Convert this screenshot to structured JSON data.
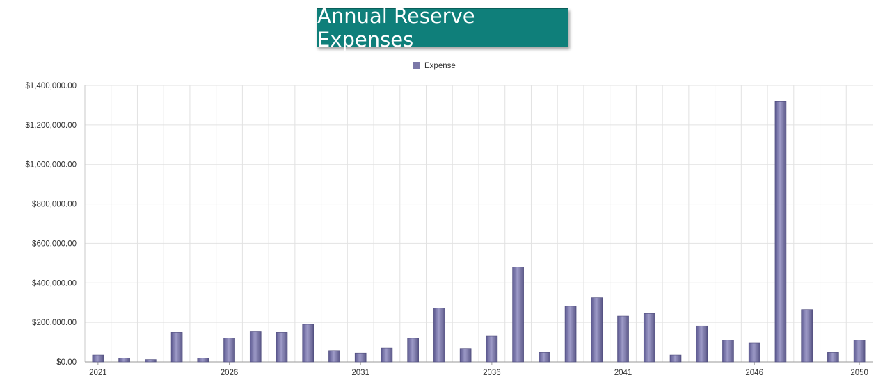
{
  "chart_data": {
    "type": "bar",
    "title": "Annual Reserve Expenses",
    "legend": {
      "entries": [
        "Expense"
      ],
      "placement": "top-center"
    },
    "xlabel": "",
    "ylabel": "",
    "ylim": [
      0,
      1400000
    ],
    "grid": true,
    "categories": [
      "2021",
      "2022",
      "2023",
      "2024",
      "2025",
      "2026",
      "2027",
      "2028",
      "2029",
      "2030",
      "2031",
      "2032",
      "2033",
      "2034",
      "2035",
      "2036",
      "2037",
      "2038",
      "2039",
      "2040",
      "2041",
      "2042",
      "2043",
      "2044",
      "2045",
      "2046",
      "2047",
      "2048",
      "2049",
      "2050"
    ],
    "x_tick_labels": [
      "2021",
      "2026",
      "2031",
      "2036",
      "2041",
      "2046",
      "2050"
    ],
    "y_tick_labels": [
      "$0.00",
      "$200,000.00",
      "$400,000.00",
      "$600,000.00",
      "$800,000.00",
      "$1,000,000.00",
      "$1,200,000.00",
      "$1,400,000.00"
    ],
    "series": [
      {
        "name": "Expense",
        "color": "#7b78a8",
        "values": [
          35000,
          20000,
          12000,
          150000,
          20000,
          122000,
          153000,
          150000,
          190000,
          57000,
          45000,
          70000,
          120000,
          272000,
          68000,
          130000,
          480000,
          48000,
          282000,
          325000,
          232000,
          245000,
          35000,
          182000,
          110000,
          95000,
          1318000,
          265000,
          48000,
          110000
        ]
      }
    ]
  }
}
